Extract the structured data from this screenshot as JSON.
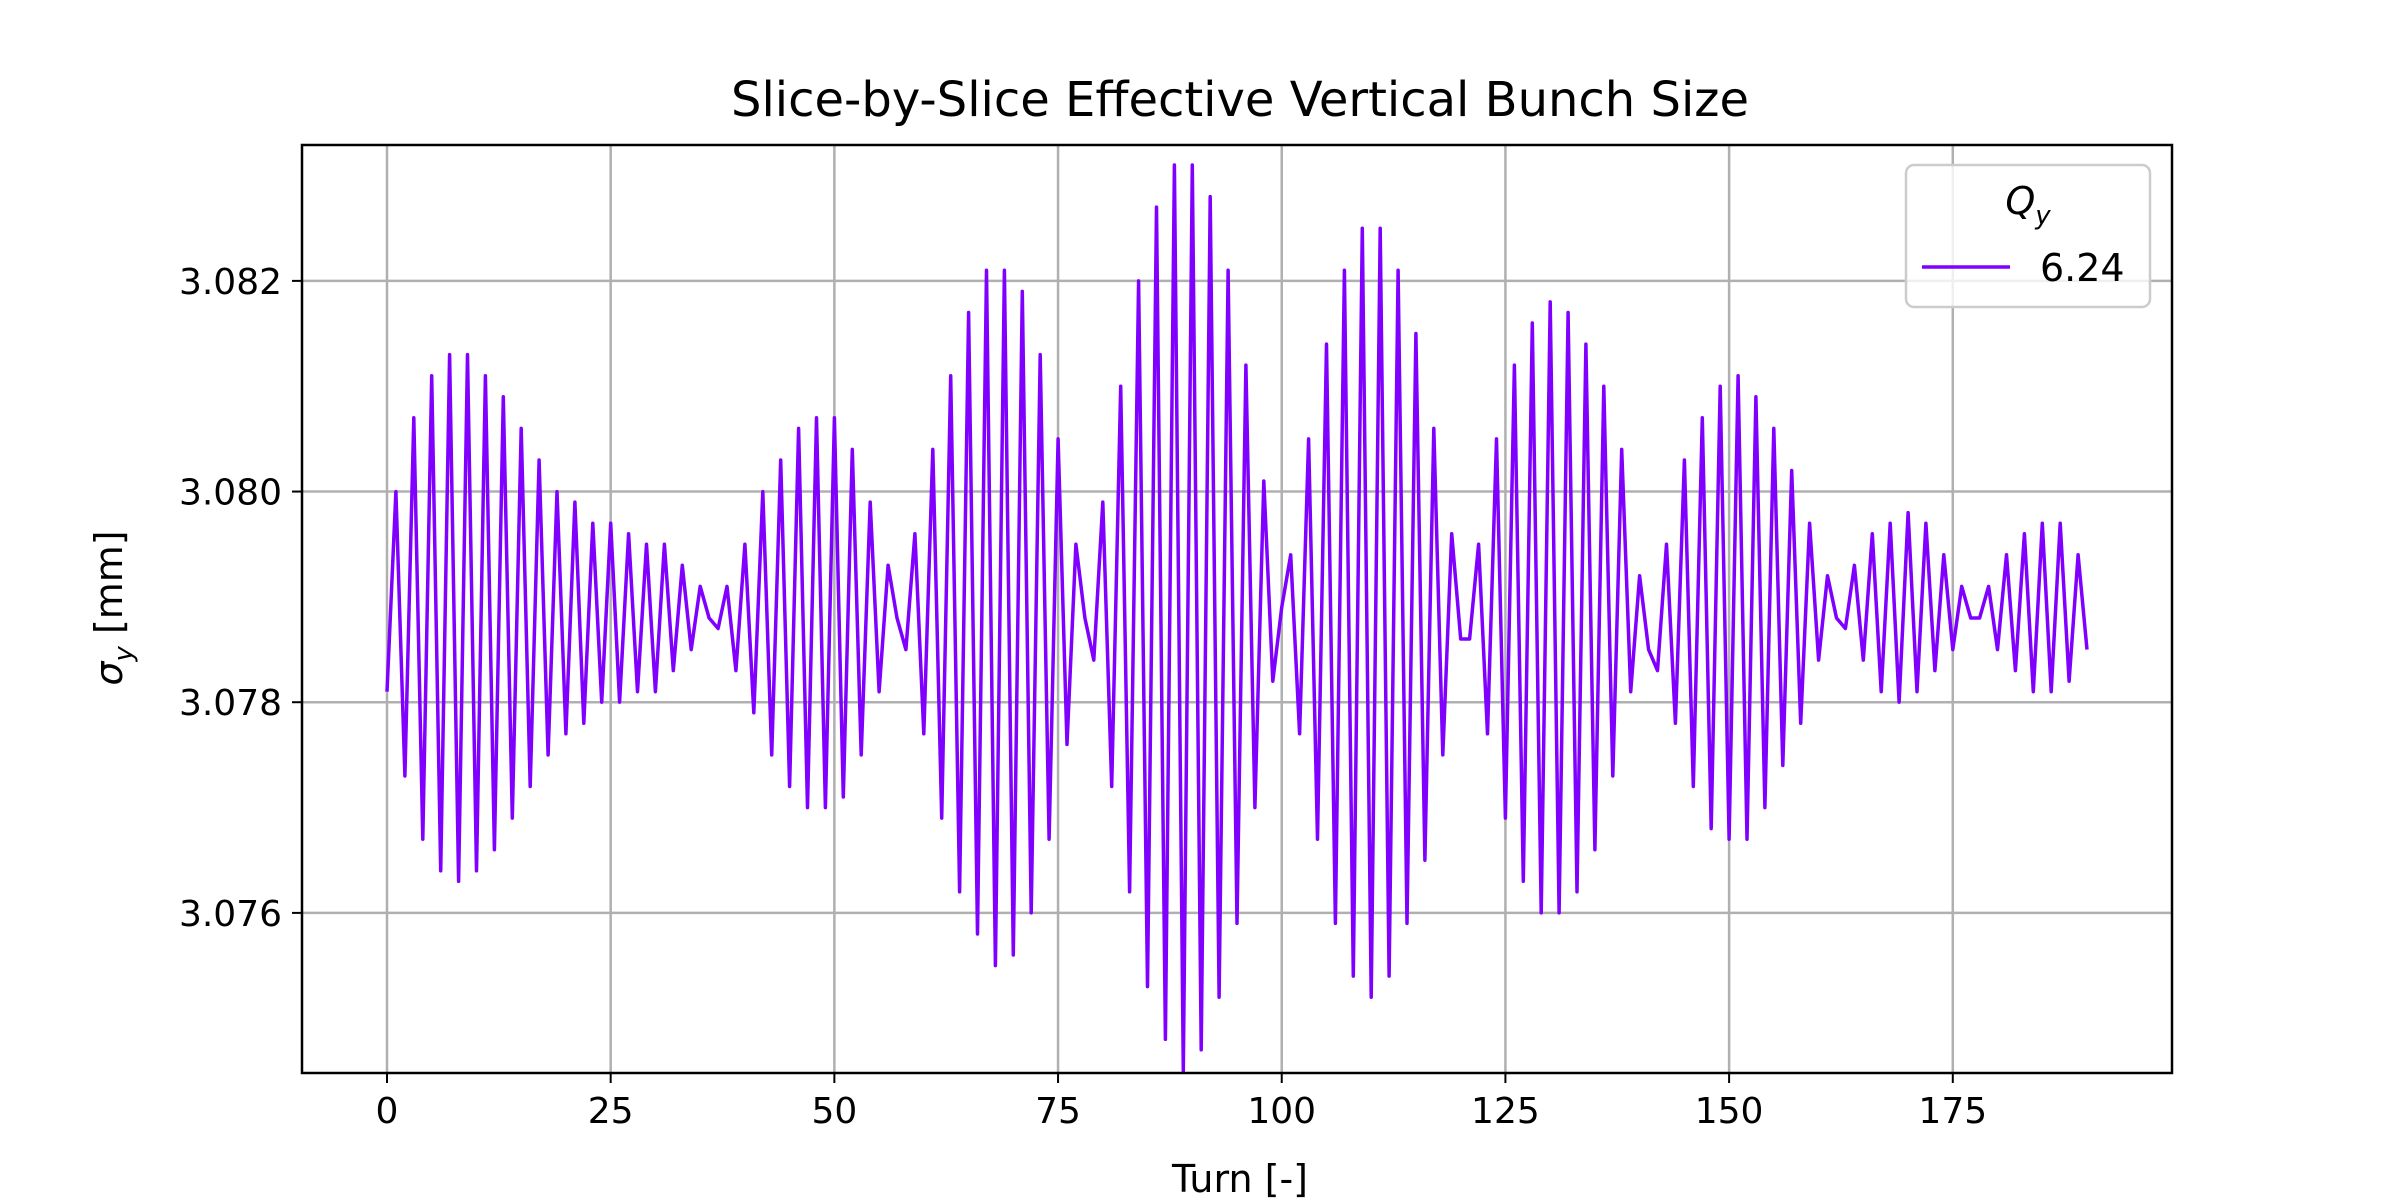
{
  "chart_data": {
    "type": "line",
    "title": "Slice-by-Slice Effective Vertical Bunch Size",
    "xlabel": "Turn [-]",
    "ylabel": {
      "symbol": "σ",
      "subscript": "y",
      "unit": " [mm]"
    },
    "xlim": [
      -9.5,
      199.5
    ],
    "ylim": [
      3.07448,
      3.08329
    ],
    "xticks": [
      0,
      25,
      50,
      75,
      100,
      125,
      150,
      175
    ],
    "xtick_labels": [
      "0",
      "25",
      "50",
      "75",
      "100",
      "125",
      "150",
      "175"
    ],
    "yticks": [
      3.076,
      3.078,
      3.08,
      3.082
    ],
    "ytick_labels": [
      "3.076",
      "3.078",
      "3.080",
      "3.082"
    ],
    "grid": true,
    "legend": {
      "placement": "top-right",
      "title": {
        "symbol": "Q",
        "subscript": "y"
      },
      "entries": [
        "6.24"
      ]
    },
    "series": [
      {
        "name": "6.24",
        "color": "#8000ff",
        "x": [
          0,
          1,
          2,
          3,
          4,
          5,
          6,
          7,
          8,
          9,
          10,
          11,
          12,
          13,
          14,
          15,
          16,
          17,
          18,
          19,
          20,
          21,
          22,
          23,
          24,
          25,
          26,
          27,
          28,
          29,
          30,
          31,
          32,
          33,
          34,
          35,
          36,
          37,
          38,
          39,
          40,
          41,
          42,
          43,
          44,
          45,
          46,
          47,
          48,
          49,
          50,
          51,
          52,
          53,
          54,
          55,
          56,
          57,
          58,
          59,
          60,
          61,
          62,
          63,
          64,
          65,
          66,
          67,
          68,
          69,
          70,
          71,
          72,
          73,
          74,
          75,
          76,
          77,
          78,
          79,
          80,
          81,
          82,
          83,
          84,
          85,
          86,
          87,
          88,
          89,
          90,
          91,
          92,
          93,
          94,
          95,
          96,
          97,
          98,
          99,
          100,
          101,
          102,
          103,
          104,
          105,
          106,
          107,
          108,
          109,
          110,
          111,
          112,
          113,
          114,
          115,
          116,
          117,
          118,
          119,
          120,
          121,
          122,
          123,
          124,
          125,
          126,
          127,
          128,
          129,
          130,
          131,
          132,
          133,
          134,
          135,
          136,
          137,
          138,
          139,
          140,
          141,
          142,
          143,
          144,
          145,
          146,
          147,
          148,
          149,
          150,
          151,
          152,
          153,
          154,
          155,
          156,
          157,
          158,
          159,
          160,
          161,
          162,
          163,
          164,
          165,
          166,
          167,
          168,
          169,
          170,
          171,
          172,
          173,
          174,
          175,
          176,
          177,
          178,
          179,
          180,
          181,
          182,
          183,
          184,
          185,
          186,
          187,
          188,
          189,
          190
        ],
        "y": [
          3.0781,
          3.08,
          3.0773,
          3.0807,
          3.0767,
          3.0811,
          3.0764,
          3.0813,
          3.0763,
          3.0813,
          3.0764,
          3.0811,
          3.0766,
          3.0809,
          3.0769,
          3.0806,
          3.0772,
          3.0803,
          3.0775,
          3.08,
          3.0777,
          3.0799,
          3.0778,
          3.0797,
          3.078,
          3.0797,
          3.078,
          3.0796,
          3.0781,
          3.0795,
          3.0781,
          3.0795,
          3.0783,
          3.0793,
          3.0785,
          3.0791,
          3.0788,
          3.0787,
          3.0791,
          3.0783,
          3.0795,
          3.0779,
          3.08,
          3.0775,
          3.0803,
          3.0772,
          3.0806,
          3.077,
          3.0807,
          3.077,
          3.0807,
          3.0771,
          3.0804,
          3.0775,
          3.0799,
          3.0781,
          3.0793,
          3.0788,
          3.0785,
          3.0796,
          3.0777,
          3.0804,
          3.0769,
          3.0811,
          3.0762,
          3.0817,
          3.0758,
          3.0821,
          3.0755,
          3.0821,
          3.0756,
          3.0819,
          3.076,
          3.0813,
          3.0767,
          3.0805,
          3.0776,
          3.0795,
          3.0788,
          3.0784,
          3.0799,
          3.0772,
          3.081,
          3.0762,
          3.082,
          3.0753,
          3.0827,
          3.0748,
          3.0831,
          3.0745,
          3.0831,
          3.0747,
          3.0828,
          3.0752,
          3.0821,
          3.0759,
          3.0812,
          3.077,
          3.0801,
          3.0782,
          3.0789,
          3.0794,
          3.0777,
          3.0805,
          3.0767,
          3.0814,
          3.0759,
          3.0821,
          3.0754,
          3.0825,
          3.0752,
          3.0825,
          3.0754,
          3.0821,
          3.0759,
          3.0815,
          3.0765,
          3.0806,
          3.0775,
          3.0796,
          3.0786,
          3.0786,
          3.0795,
          3.0777,
          3.0805,
          3.0769,
          3.0812,
          3.0763,
          3.0816,
          3.076,
          3.0818,
          3.076,
          3.0817,
          3.0762,
          3.0814,
          3.0766,
          3.081,
          3.0773,
          3.0804,
          3.0781,
          3.0792,
          3.0785,
          3.0783,
          3.0795,
          3.0778,
          3.0803,
          3.0772,
          3.0807,
          3.0768,
          3.081,
          3.0767,
          3.0811,
          3.0767,
          3.0809,
          3.077,
          3.0806,
          3.0774,
          3.0802,
          3.0778,
          3.0797,
          3.0784,
          3.0792,
          3.0788,
          3.0787,
          3.0793,
          3.0784,
          3.0796,
          3.0781,
          3.0797,
          3.078,
          3.0798,
          3.0781,
          3.0797,
          3.0783,
          3.0794,
          3.0785,
          3.0791,
          3.0788,
          3.0788,
          3.0791,
          3.0785,
          3.0794,
          3.0783,
          3.0796,
          3.0781,
          3.0797,
          3.0781,
          3.0797,
          3.0782,
          3.0794,
          3.0785
        ]
      }
    ]
  }
}
